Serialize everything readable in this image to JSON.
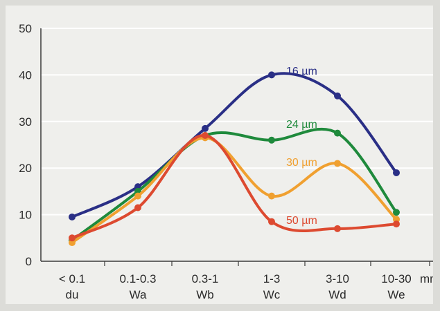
{
  "chart_data": {
    "type": "line",
    "categories": [
      {
        "range": "< 0.1",
        "code": "du"
      },
      {
        "range": "0.1-0.3",
        "code": "Wa"
      },
      {
        "range": "0.3-1",
        "code": "Wb"
      },
      {
        "range": "1-3",
        "code": "Wc"
      },
      {
        "range": "3-10",
        "code": "Wd"
      },
      {
        "range": "10-30",
        "code": "We"
      }
    ],
    "x_unit": "mm",
    "ylim": [
      0,
      50
    ],
    "yticks": [
      0,
      10,
      20,
      30,
      40,
      50
    ],
    "grid": true,
    "series": [
      {
        "name": "16 µm",
        "color": "#2a2f86",
        "values": [
          9.5,
          16,
          28.5,
          40,
          35.5,
          19
        ]
      },
      {
        "name": "24 µm",
        "color": "#1f8a3c",
        "values": [
          4.5,
          15,
          27,
          26,
          27.5,
          10.5
        ]
      },
      {
        "name": "30 µm",
        "color": "#f0a030",
        "values": [
          4,
          14,
          26.5,
          14,
          21,
          9
        ]
      },
      {
        "name": "50 µm",
        "color": "#dd4a30",
        "values": [
          5,
          11.5,
          27,
          8.5,
          7,
          8
        ]
      }
    ]
  }
}
